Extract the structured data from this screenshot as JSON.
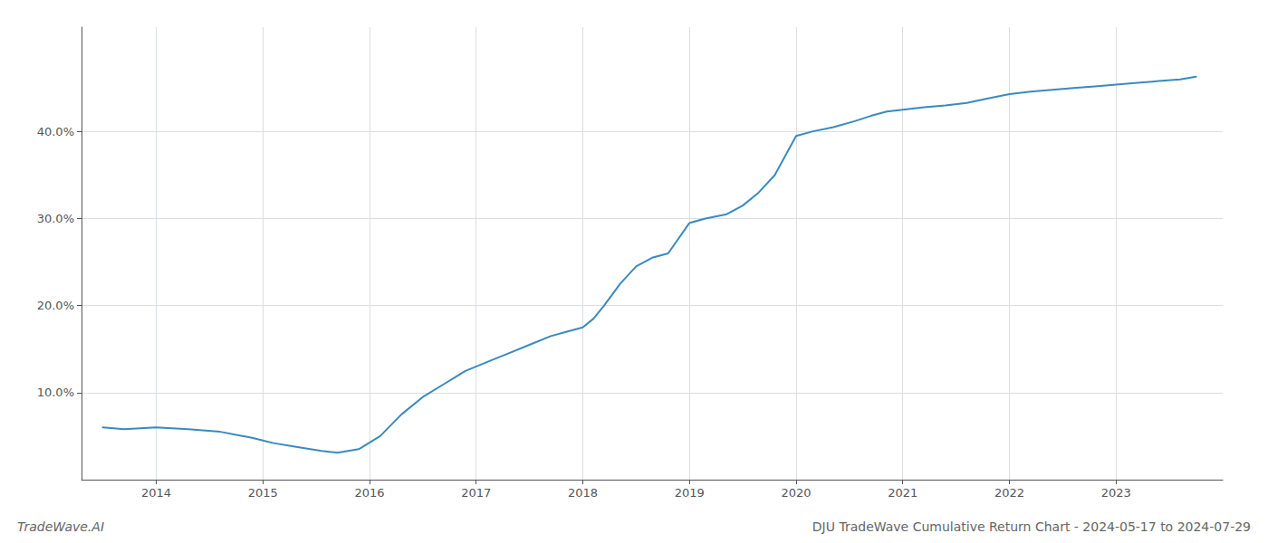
{
  "chart_data": {
    "type": "line",
    "title": "DJU TradeWave Cumulative Return Chart - 2024-05-17 to 2024-07-29",
    "annotations": [
      "TradeWave.AI"
    ],
    "color": "#3a8abf",
    "x": [
      2013.5,
      2013.7,
      2014.0,
      2014.3,
      2014.6,
      2014.9,
      2015.0,
      2015.1,
      2015.3,
      2015.55,
      2015.7,
      2015.9,
      2016.1,
      2016.3,
      2016.5,
      2016.7,
      2016.9,
      2017.1,
      2017.3,
      2017.5,
      2017.7,
      2017.85,
      2018.0,
      2018.1,
      2018.2,
      2018.35,
      2018.5,
      2018.65,
      2018.8,
      2019.0,
      2019.15,
      2019.35,
      2019.5,
      2019.65,
      2019.8,
      2020.0,
      2020.15,
      2020.35,
      2020.55,
      2020.7,
      2020.85,
      2021.0,
      2021.2,
      2021.4,
      2021.6,
      2021.8,
      2022.0,
      2022.2,
      2022.4,
      2022.6,
      2022.8,
      2023.0,
      2023.2,
      2023.4,
      2023.6,
      2023.75
    ],
    "values": [
      6.0,
      5.8,
      6.0,
      5.8,
      5.5,
      4.8,
      4.5,
      4.2,
      3.8,
      3.3,
      3.1,
      3.5,
      5.0,
      7.5,
      9.5,
      11.0,
      12.5,
      13.5,
      14.5,
      15.5,
      16.5,
      17.0,
      17.5,
      18.5,
      20.0,
      22.5,
      24.5,
      25.5,
      26.0,
      29.5,
      30.0,
      30.5,
      31.5,
      33.0,
      35.0,
      39.5,
      40.0,
      40.5,
      41.2,
      41.8,
      42.3,
      42.5,
      42.8,
      43.0,
      43.3,
      43.8,
      44.3,
      44.6,
      44.8,
      45.0,
      45.2,
      45.4,
      45.6,
      45.8,
      46.0,
      46.3
    ],
    "xlim": [
      2013.3,
      2024.0
    ],
    "ylim": [
      0,
      52
    ],
    "xticks": [
      2014,
      2015,
      2016,
      2017,
      2018,
      2019,
      2020,
      2021,
      2022,
      2023
    ],
    "yticks": [
      {
        "value": 10.0,
        "label": "10.0%"
      },
      {
        "value": 20.0,
        "label": "20.0%"
      },
      {
        "value": 30.0,
        "label": "30.0%"
      },
      {
        "value": 40.0,
        "label": "40.0%"
      }
    ],
    "grid": true
  }
}
